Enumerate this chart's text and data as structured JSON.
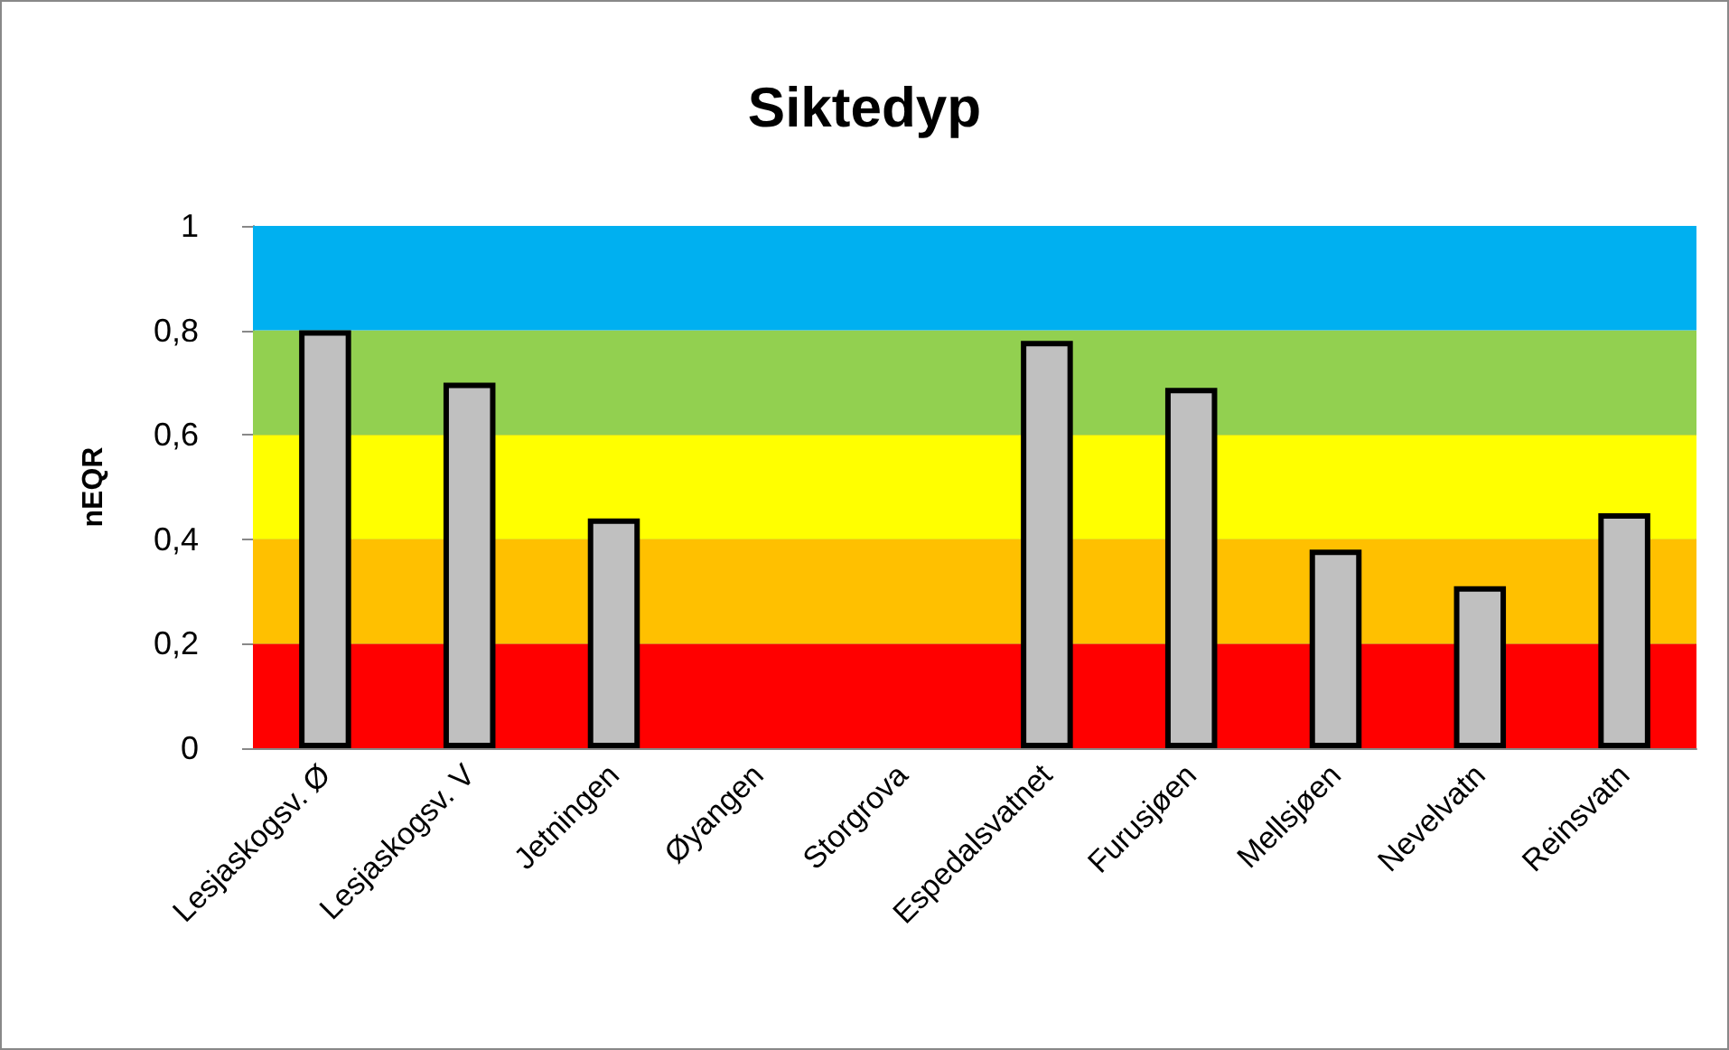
{
  "chart_data": {
    "type": "bar",
    "title": "Siktedyp",
    "ylabel": "nEQR",
    "categories": [
      "Lesjaskogsv. Ø",
      "Lesjaskogsv. V",
      "Jetningen",
      "Øyangen",
      "Storgrova",
      "Espedalsvatnet",
      "Furusjøen",
      "Mellsjøen",
      "Nevelvatn",
      "Reinsvatn"
    ],
    "values": [
      0.8,
      0.7,
      0.44,
      null,
      null,
      0.78,
      0.69,
      0.38,
      0.31,
      0.45
    ],
    "color": "#c0c0c0",
    "ylim": [
      0,
      1
    ],
    "yticks": [
      0,
      {
        "value": 0.2,
        "label": "0,2"
      },
      {
        "value": 0.4,
        "label": "0,4"
      },
      {
        "value": 0.6,
        "label": "0,6"
      },
      {
        "value": 0.8,
        "label": "0,8"
      },
      1
    ],
    "bands": [
      {
        "axis": "y",
        "from": 0,
        "to": 0.2,
        "color": "#ff0000"
      },
      {
        "axis": "y",
        "from": 0.2,
        "to": 0.4,
        "color": "#ffc000"
      },
      {
        "axis": "y",
        "from": 0.4,
        "to": 0.6,
        "color": "#ffff00"
      },
      {
        "axis": "y",
        "from": 0.6,
        "to": 0.8,
        "color": "#92d050"
      },
      {
        "axis": "y",
        "from": 0.8,
        "to": 1,
        "color": "#00b0f0"
      }
    ],
    "grid": "y"
  }
}
